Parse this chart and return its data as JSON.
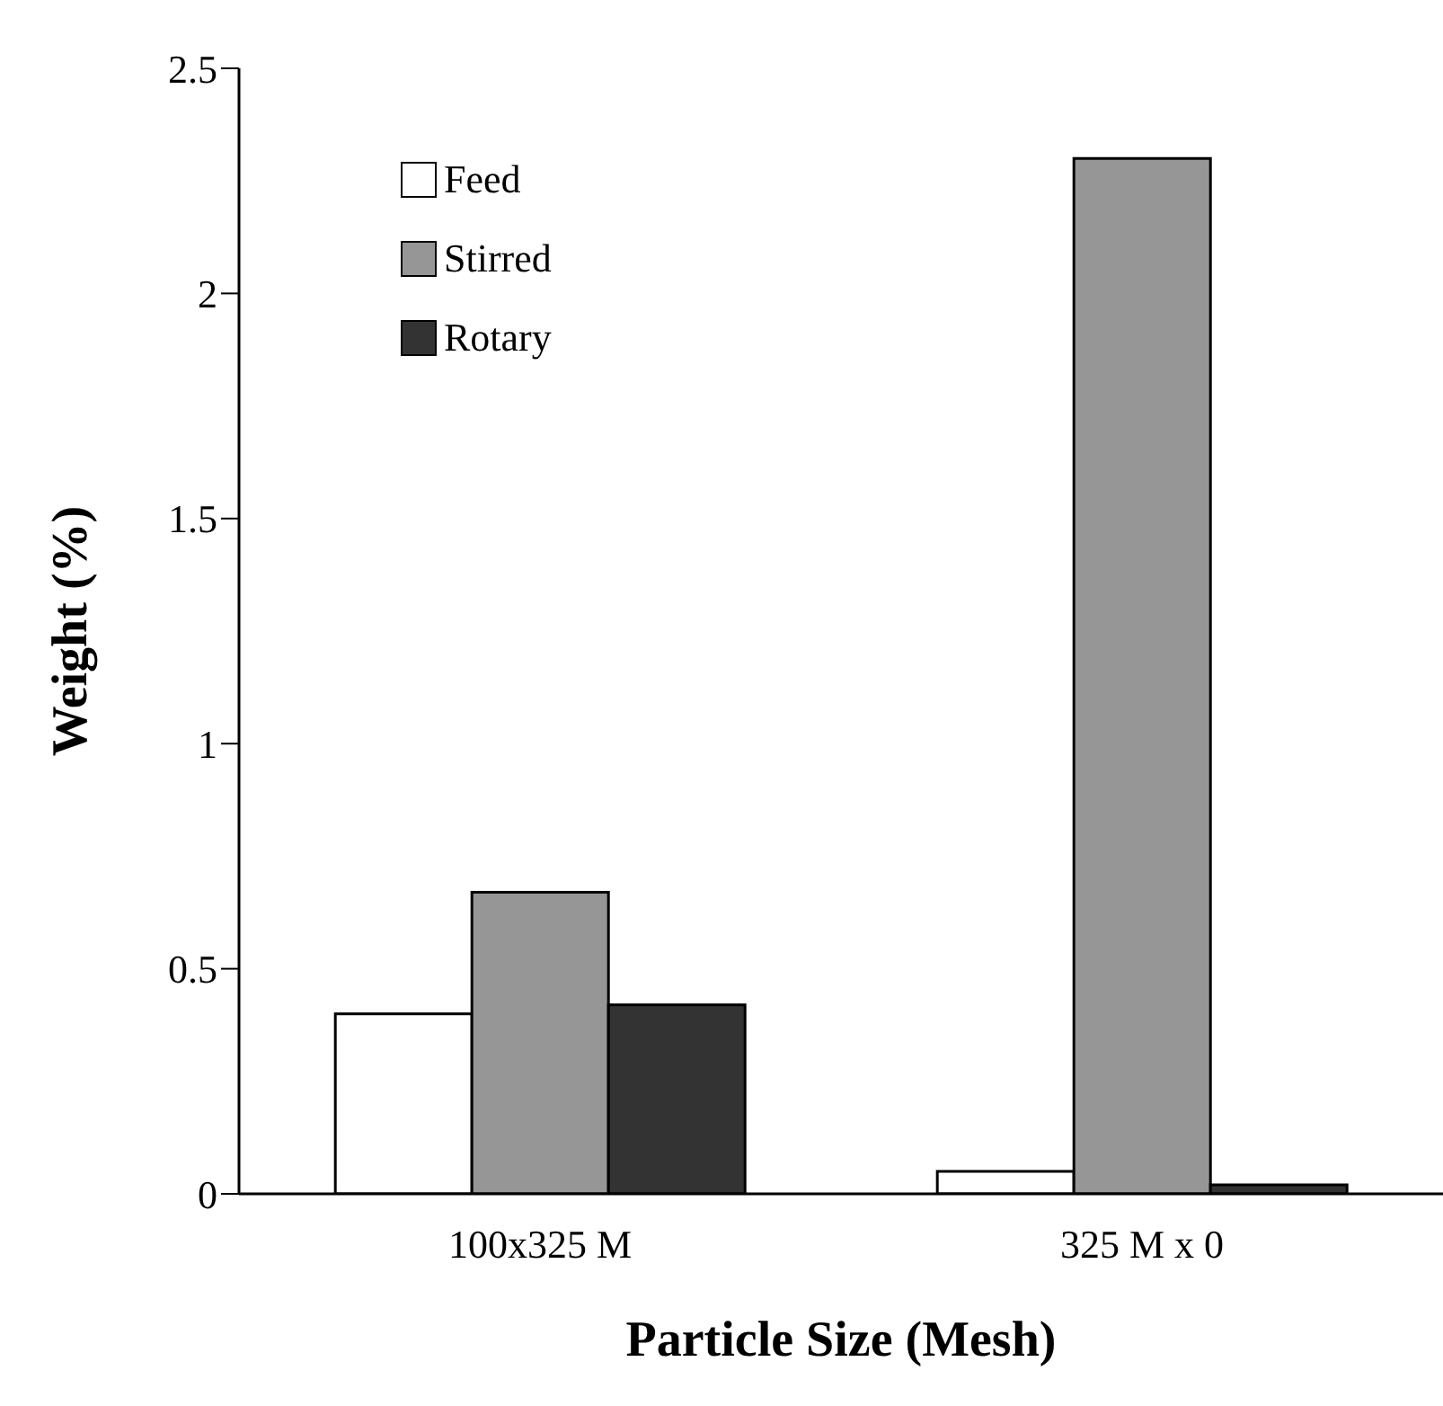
{
  "chart_data": {
    "type": "bar",
    "xlabel": "Particle Size (Mesh)",
    "ylabel": "Weight (%)",
    "categories": [
      "100x325 M",
      "325 M x 0"
    ],
    "series": [
      {
        "name": "Feed",
        "color": "#ffffff",
        "values": [
          0.4,
          0.05
        ]
      },
      {
        "name": "Stirred",
        "color": "#969696",
        "values": [
          0.67,
          2.3
        ]
      },
      {
        "name": "Rotary",
        "color": "#333333",
        "values": [
          0.42,
          0.02
        ]
      }
    ],
    "ylim": [
      0,
      2.5
    ],
    "yticks": [
      0,
      0.5,
      1,
      1.5,
      2,
      2.5
    ],
    "grid": false,
    "legend": "top left"
  }
}
